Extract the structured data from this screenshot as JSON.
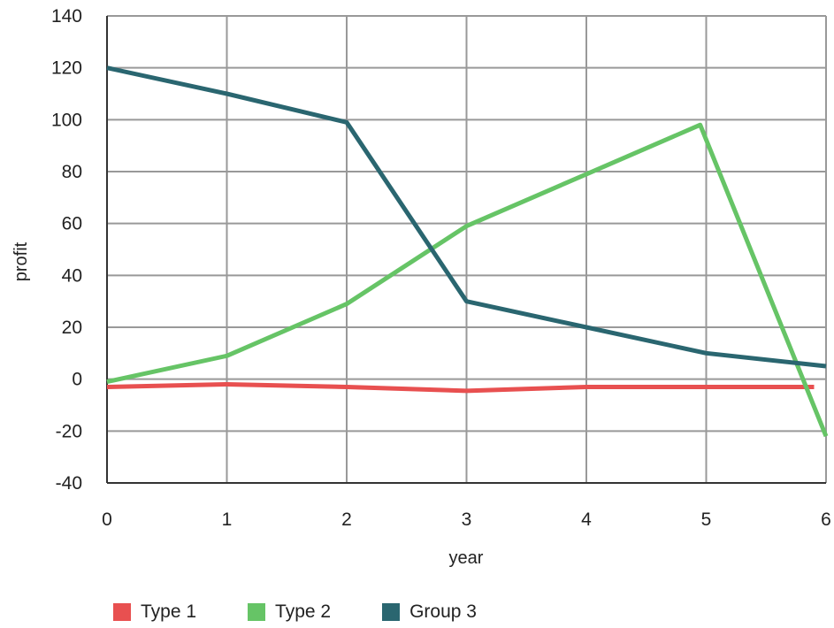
{
  "chart_data": {
    "type": "line",
    "xlabel": "year",
    "ylabel": "profit",
    "x": [
      0,
      1,
      2,
      3,
      4,
      5,
      6
    ],
    "x_ticks": [
      "0",
      "1",
      "2",
      "3",
      "4",
      "5",
      "6"
    ],
    "y_ticks": [
      "140",
      "120",
      "100",
      "80",
      "60",
      "40",
      "20",
      "0",
      "-20",
      "-40"
    ],
    "xlim": [
      0,
      6
    ],
    "ylim": [
      -40,
      140
    ],
    "grid": true,
    "legend_position": "bottom",
    "series": [
      {
        "name": "Type 1",
        "color": "#e85050",
        "points": [
          [
            0,
            -3
          ],
          [
            1,
            -2
          ],
          [
            2,
            -3
          ],
          [
            3,
            -4.5
          ],
          [
            4,
            -3
          ],
          [
            5,
            -3
          ],
          [
            5.9,
            -3
          ]
        ]
      },
      {
        "name": "Type 2",
        "color": "#66c466",
        "points": [
          [
            0,
            -1
          ],
          [
            1,
            9
          ],
          [
            2,
            29
          ],
          [
            3,
            59
          ],
          [
            4,
            79
          ],
          [
            4.95,
            98
          ],
          [
            6,
            -22
          ]
        ]
      },
      {
        "name": "Group 3",
        "color": "#2a6670",
        "points": [
          [
            0,
            120
          ],
          [
            1,
            110
          ],
          [
            2,
            99
          ],
          [
            3,
            30
          ],
          [
            4,
            20
          ],
          [
            5,
            10
          ],
          [
            6,
            5
          ]
        ]
      }
    ]
  }
}
